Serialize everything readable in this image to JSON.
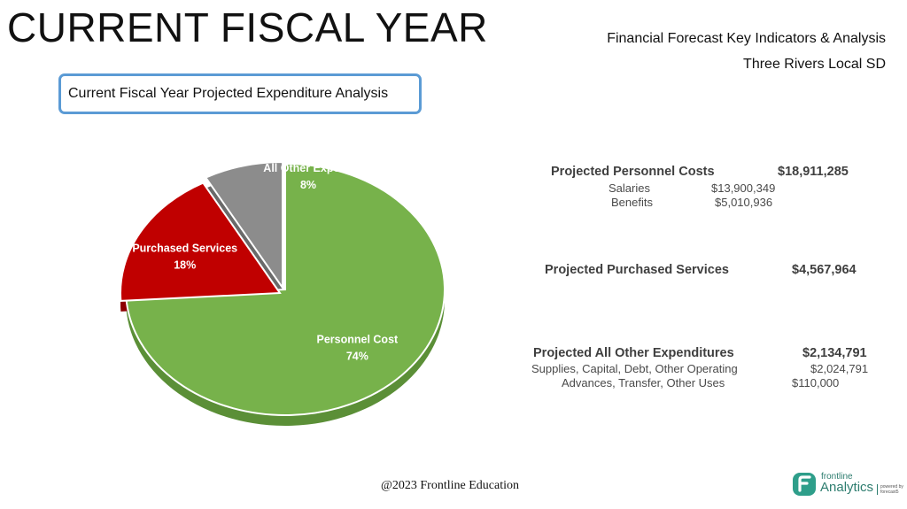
{
  "header": {
    "title": "CURRENT FISCAL YEAR",
    "report_title": "Financial Forecast Key Indicators & Analysis",
    "district": "Three Rivers Local SD"
  },
  "chart_box": {
    "label": "Current Fiscal Year Projected Expenditure Analysis"
  },
  "chart_data": {
    "type": "pie",
    "title": "Current Fiscal Year Projected Expenditure Analysis",
    "slices": [
      {
        "name": "Personnel Cost",
        "percent": 74,
        "label": "74%",
        "color": "#77b24b",
        "side": "#5b8f37"
      },
      {
        "name": "Purchased Services",
        "percent": 18,
        "label": "18%",
        "color": "#c00000",
        "side": "#8c0000"
      },
      {
        "name": "All Other Expenditures",
        "percent": 8,
        "label": "8%",
        "color": "#8c8c8c",
        "side": "#6a6a6a"
      }
    ],
    "visible_labels": [
      "Personnel Cost",
      "Purchased Services",
      "All Other Expend"
    ]
  },
  "summary": {
    "personnel": {
      "label": "Projected Personnel Costs",
      "value": "$18,911,285",
      "items": [
        {
          "label": "Salaries",
          "value": "$13,900,349"
        },
        {
          "label": "Benefits",
          "value": "$5,010,936"
        }
      ]
    },
    "purchased": {
      "label": "Projected Purchased Services",
      "value": "$4,567,964"
    },
    "other": {
      "label": "Projected All Other Expenditures",
      "value": "$2,134,791",
      "items": [
        {
          "label": "Supplies, Capital, Debt, Other Operating",
          "value": "$2,024,791"
        },
        {
          "label": "Advances, Transfer, Other Uses",
          "value": "$110,000"
        }
      ]
    }
  },
  "footer": {
    "copyright": "@2023 Frontline Education"
  },
  "logo": {
    "line1": "frontline",
    "line2": "Analytics",
    "tagline1": "powered by",
    "tagline2": "forecast5"
  }
}
